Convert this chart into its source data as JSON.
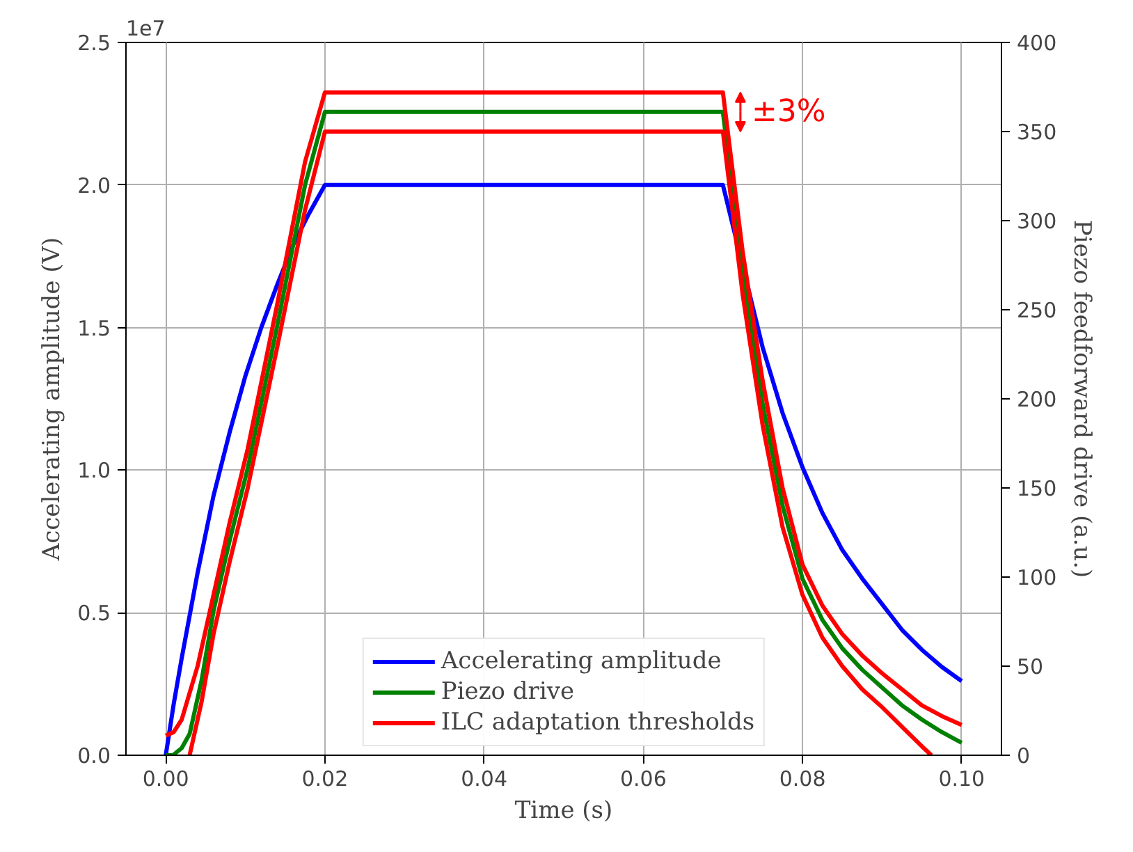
{
  "chart_data": {
    "type": "line",
    "xlabel": "Time (s)",
    "ylabel": "Accelerating amplitude (V)",
    "y2label": "Piezo feedforward drive (a.u.)",
    "xlim": [
      -0.005,
      0.105
    ],
    "xticks": [
      {
        "value": 0,
        "label": "0.00"
      },
      {
        "value": 0.02,
        "label": "0.02"
      },
      {
        "value": 0.04,
        "label": "0.04"
      },
      {
        "value": 0.06,
        "label": "0.06"
      },
      {
        "value": 0.08,
        "label": "0.08"
      },
      {
        "value": 0.1,
        "label": "0.10"
      }
    ],
    "ylim": [
      0,
      2.5
    ],
    "yticks": [
      {
        "value": 0,
        "label": "0.0"
      },
      0.5,
      {
        "value": 1,
        "label": "1.0"
      },
      1.5,
      {
        "value": 2,
        "label": "2.0"
      },
      2.5
    ],
    "y2lim": [
      0,
      400
    ],
    "y2ticks": [
      0,
      50,
      100,
      150,
      200,
      250,
      300,
      350,
      400
    ],
    "grid": true,
    "legend": "bottom",
    "line_style": "solid",
    "annotations": [
      "1e7",
      "±3%"
    ],
    "series": [
      {
        "name": "Accelerating amplitude",
        "color": "#0000ff",
        "axis": "y",
        "x": [
          0,
          0.001,
          0.002,
          0.004,
          0.006,
          0.008,
          0.01,
          0.012,
          0.014,
          0.016,
          0.018,
          0.02,
          0.07,
          0.075,
          0.0775,
          0.08,
          0.0825,
          0.085,
          0.0875,
          0.09,
          0.0925,
          0.095,
          0.0975,
          0.1
        ],
        "values": [
          0,
          0.18,
          0.34,
          0.64,
          0.91,
          1.13,
          1.33,
          1.5,
          1.65,
          1.79,
          1.9,
          2.0,
          2.0,
          1.43,
          1.2,
          1.01,
          0.85,
          0.72,
          0.62,
          0.53,
          0.44,
          0.37,
          0.31,
          0.26
        ]
      },
      {
        "name": "Piezo drive",
        "color": "#008000",
        "axis": "y2",
        "x": [
          0,
          0.0009,
          0.002,
          0.003,
          0.0045,
          0.006,
          0.008,
          0.0103,
          0.014,
          0.0175,
          0.02,
          0.07,
          0.0725,
          0.075,
          0.0775,
          0.08,
          0.0825,
          0.085,
          0.0875,
          0.09,
          0.0925,
          0.095,
          0.0975,
          0.1
        ],
        "values": [
          0,
          0,
          4,
          12,
          42,
          81,
          120,
          161,
          241,
          320,
          361,
          361,
          270,
          197,
          140,
          99,
          76,
          60,
          48,
          38,
          28,
          20,
          13,
          7
        ]
      },
      {
        "name": "ILC adaptation thresholds",
        "color": "#ff0000",
        "axis": "y2",
        "x": [
          0,
          0.001,
          0.002,
          0.004,
          0.006,
          0.008,
          0.0103,
          0.014,
          0.0175,
          0.02,
          0.07,
          0.0725,
          0.075,
          0.0775,
          0.08,
          0.0825,
          0.085,
          0.0875,
          0.09,
          0.0925,
          0.095,
          0.0975,
          0.1
        ],
        "values": [
          11,
          13,
          20,
          50,
          90,
          130,
          172,
          253,
          333,
          372,
          372,
          282,
          210,
          150,
          107,
          84,
          68,
          56,
          46,
          37,
          28,
          22,
          17
        ]
      },
      {
        "color": "#ff0000",
        "axis": "y2",
        "x": [
          0.003,
          0.0045,
          0.006,
          0.008,
          0.0103,
          0.014,
          0.0175,
          0.02,
          0.07,
          0.0725,
          0.075,
          0.0775,
          0.08,
          0.0825,
          0.085,
          0.0875,
          0.09,
          0.0925,
          0.095,
          0.0962
        ],
        "values": [
          0,
          30,
          68,
          108,
          150,
          229,
          306,
          350,
          350,
          258,
          185,
          128,
          90,
          66,
          50,
          37,
          27,
          16,
          5,
          0
        ]
      }
    ]
  }
}
